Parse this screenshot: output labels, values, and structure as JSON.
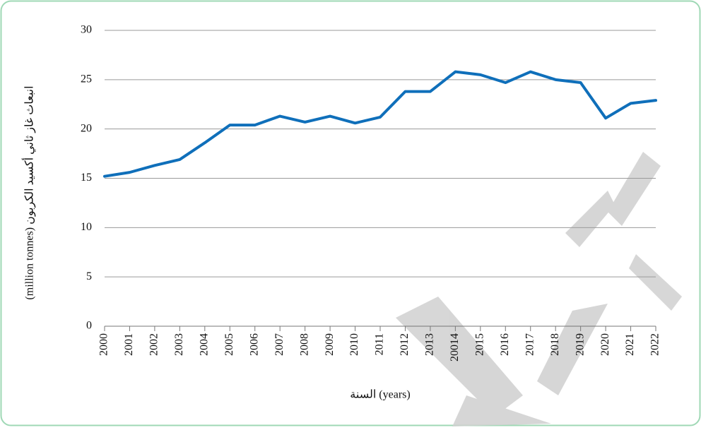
{
  "chart_data": {
    "type": "line",
    "x_label": "السنة (years)",
    "y_label": "(million tonnes) انبعاث غاز ثاني أكسيد الكربون",
    "categories": [
      "2000",
      "2001",
      "2002",
      "2003",
      "2004",
      "2005",
      "2006",
      "2007",
      "2008",
      "2009",
      "2010",
      "2011",
      "2012",
      "2013",
      "20014",
      "2015",
      "2016",
      "2017",
      "2018",
      "2019",
      "2020",
      "2021",
      "2022"
    ],
    "series": [
      {
        "color": "#0f6fba",
        "values": [
          15.2,
          15.6,
          16.3,
          16.9,
          18.6,
          20.4,
          20.4,
          21.3,
          20.7,
          21.3,
          20.6,
          21.2,
          23.8,
          23.8,
          25.8,
          25.5,
          24.7,
          25.8,
          25.0,
          24.7,
          21.1,
          22.6,
          22.9
        ]
      }
    ],
    "ylim": [
      0,
      30
    ],
    "yticks": [
      0,
      5,
      10,
      15,
      20,
      25,
      30
    ],
    "grid": true
  }
}
